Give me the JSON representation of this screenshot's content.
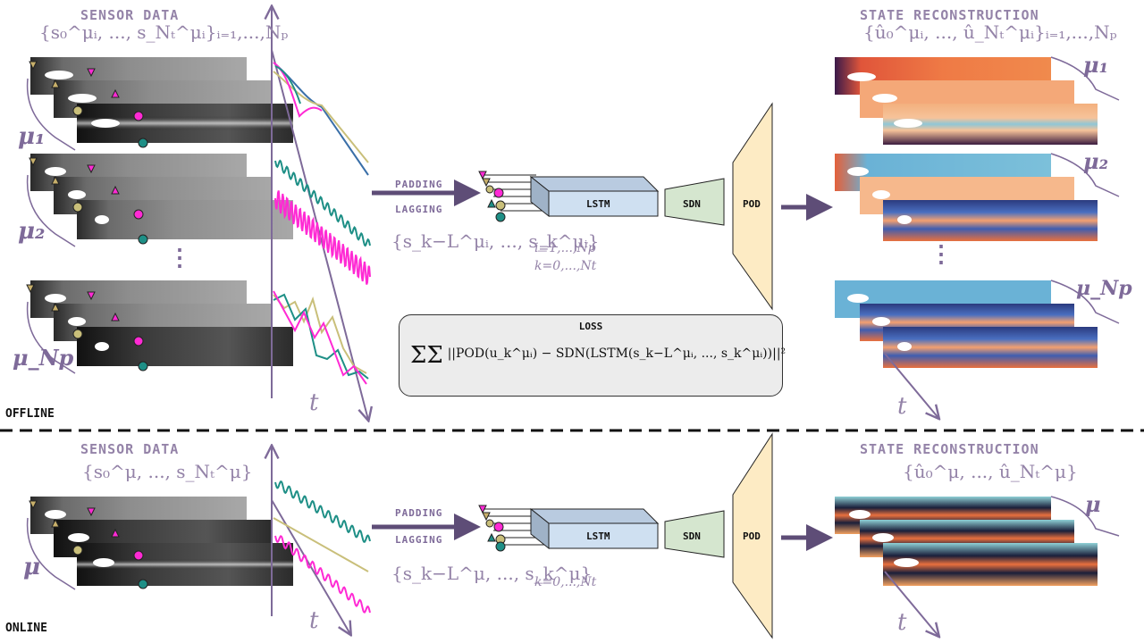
{
  "offline": {
    "mode_label": "OFFLINE",
    "sensor_title": "SENSOR DATA",
    "sensor_set": "{s₀^μᵢ, ..., s_Nₜ^μᵢ}ᵢ₌₁,...,Nₚ",
    "mu_labels": [
      "μ₁",
      "μ₂",
      "μ_Np"
    ],
    "dots": "⋮",
    "padding_label": "PADDING",
    "lagging_label": "LAGGING",
    "window_set": "{s_k−L^μᵢ, ..., s_k^μᵢ}",
    "window_sub1": "i=1,...,Np",
    "window_sub2": "k=0,...,Nt",
    "lstm_label": "LSTM",
    "sdn_label": "SDN",
    "pod_label": "POD",
    "loss_title": "LOSS",
    "loss_formula": "||POD(u_k^μᵢ) − SDN(LSTM(s_k−L^μᵢ, ..., s_k^μᵢ))||²",
    "recon_title": "STATE RECONSTRUCTION",
    "recon_set": "{û₀^μᵢ, ..., û_Nₜ^μᵢ}ᵢ₌₁,...,Nₚ",
    "recon_mu_labels": [
      "μ₁",
      "μ₂",
      "μ_Np"
    ],
    "time_label": "t"
  },
  "online": {
    "mode_label": "ONLINE",
    "sensor_title": "SENSOR DATA",
    "sensor_set": "{s₀^μ, ..., s_Nₜ^μ}",
    "mu_label": "μ",
    "padding_label": "PADDING",
    "lagging_label": "LAGGING",
    "window_set": "{s_k−L^μ, ..., s_k^μ}",
    "window_sub": "k=0,...,Nt",
    "lstm_label": "LSTM",
    "sdn_label": "SDN",
    "pod_label": "POD",
    "recon_title": "STATE RECONSTRUCTION",
    "recon_set": "{û₀^μ, ..., û_Nₜ^μ}",
    "recon_mu_label": "μ",
    "time_label": "t"
  },
  "colors": {
    "accent": "#7e6a99",
    "title_text": "#9483a8",
    "lstm_fill": "#cfe0f1",
    "sdn_fill": "#d5e6cf",
    "pod_fill": "#fdebc4",
    "sensor_magenta": "#ff2ad4",
    "sensor_tan": "#c8b06b",
    "sensor_teal": "#1e8f86",
    "sensor_olive": "#c9bf7a",
    "arrow": "#5e4d77"
  }
}
